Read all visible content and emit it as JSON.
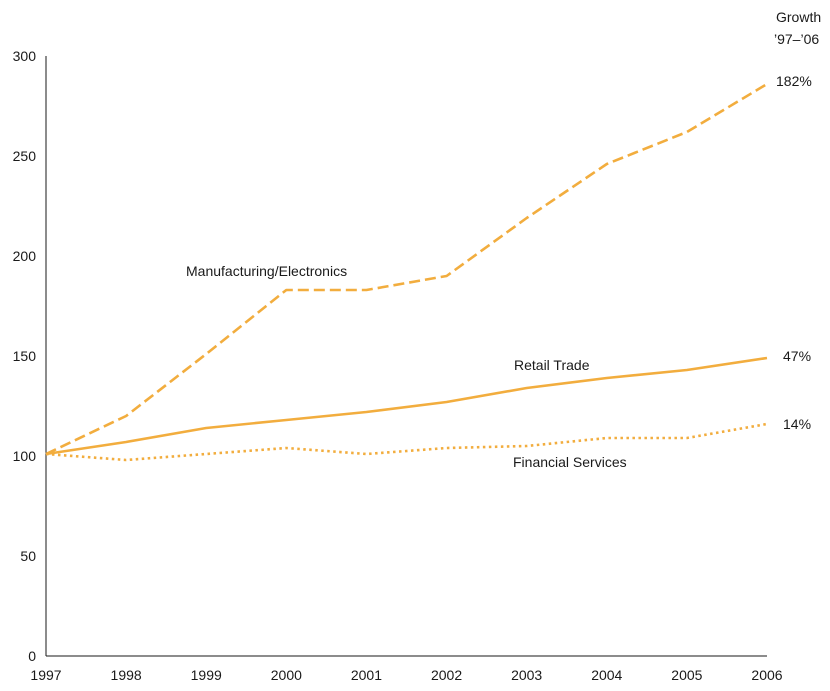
{
  "chart_data": {
    "type": "line",
    "x": [
      1997,
      1998,
      1999,
      2000,
      2001,
      2002,
      2003,
      2004,
      2005,
      2006
    ],
    "ylim": [
      0,
      300
    ],
    "yticks": [
      0,
      50,
      100,
      150,
      200,
      250,
      300
    ],
    "xticks": [
      "1997",
      "1998",
      "1999",
      "2000",
      "2001",
      "2002",
      "2003",
      "2004",
      "2005",
      "2006"
    ],
    "growth_header": [
      "Growth",
      "’97–’06"
    ],
    "series_color": "#f2ad3e",
    "series": [
      {
        "name": "Manufacturing/Electronics",
        "style": "dashed",
        "growth": "182%",
        "values": [
          101,
          120,
          151,
          183,
          183,
          190,
          219,
          246,
          262,
          286
        ]
      },
      {
        "name": "Retail Trade",
        "style": "solid",
        "growth": "47%",
        "values": [
          101,
          107,
          114,
          118,
          122,
          127,
          134,
          139,
          143,
          149
        ]
      },
      {
        "name": "Financial Services",
        "style": "dotted",
        "growth": "14%",
        "values": [
          101,
          98,
          101,
          104,
          101,
          104,
          105,
          109,
          109,
          116
        ]
      }
    ]
  }
}
